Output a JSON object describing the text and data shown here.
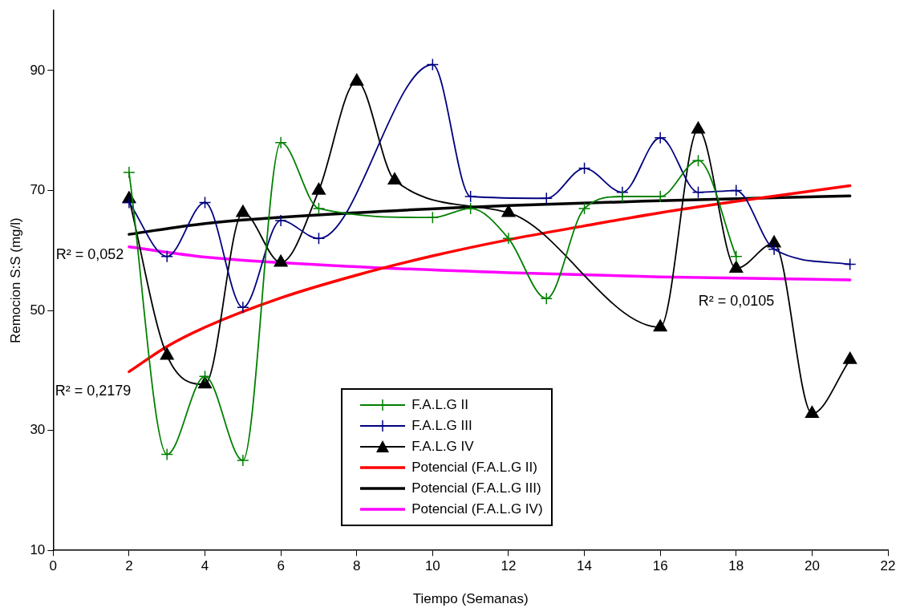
{
  "chart_data": {
    "type": "line",
    "xlabel": "Tiempo (Semanas)",
    "ylabel": "Remocion S:S (mg/l)",
    "xlim": [
      0,
      22
    ],
    "xticks": [
      0,
      2,
      4,
      6,
      8,
      10,
      12,
      14,
      16,
      18,
      20,
      22
    ],
    "ylim": [
      10,
      100
    ],
    "yticks": [
      10,
      30,
      50,
      70,
      90
    ],
    "grid": false,
    "legend": "bottom",
    "line_style": "solid",
    "series": [
      {
        "name": "F.A.L.G II",
        "color": "#008000",
        "marker": "cross",
        "x": [
          2,
          3,
          4,
          5,
          6,
          7,
          10,
          11,
          12,
          13,
          14,
          15,
          16,
          17,
          18
        ],
        "values": [
          73,
          26,
          39,
          25,
          78,
          67,
          65.5,
          67,
          62,
          52,
          67,
          69,
          69,
          75,
          59
        ]
      },
      {
        "name": "F.A.L.G III",
        "color": "#000080",
        "marker": "cross",
        "x": [
          2,
          3,
          4,
          5,
          6,
          7,
          10,
          11,
          13,
          14,
          15,
          16,
          17,
          18,
          19,
          21
        ],
        "values": [
          68,
          59,
          68,
          50.5,
          65,
          62,
          91,
          69,
          68.7,
          73.7,
          69.7,
          78.8,
          69.7,
          70,
          60.2,
          57.7
        ]
      },
      {
        "name": "F.A.L.G IV",
        "color": "#000000",
        "marker": "triangle",
        "x": [
          2,
          3,
          4,
          5,
          6,
          7,
          8,
          9,
          12,
          16,
          17,
          18,
          19,
          20,
          21
        ],
        "values": [
          68.6,
          42.5,
          37.7,
          66.3,
          58,
          70,
          88.2,
          71.7,
          66.3,
          47.2,
          80.2,
          57,
          61.2,
          32.8,
          41.8
        ]
      },
      {
        "name": "Potencial (F.A.L.G II)",
        "color": "#ff0000",
        "marker": "none",
        "x": [
          2,
          3,
          4,
          6,
          8,
          10,
          12,
          14,
          16,
          18,
          21
        ],
        "values": [
          39.8,
          44,
          47.2,
          52.1,
          55.9,
          59.1,
          61.8,
          64.1,
          66.3,
          68.2,
          70.8
        ]
      },
      {
        "name": "Potencial (F.A.L.G III)",
        "color": "#000000",
        "marker": "none",
        "x": [
          2,
          4,
          8,
          12,
          16,
          21
        ],
        "values": [
          62.7,
          64.5,
          66.3,
          67.5,
          68.3,
          69.1
        ]
      },
      {
        "name": "Potencial (F.A.L.G IV)",
        "color": "#ff00ff",
        "marker": "none",
        "x": [
          2,
          4,
          8,
          12,
          16,
          21
        ],
        "values": [
          60.6,
          58.9,
          57.3,
          56.3,
          55.6,
          55.1
        ]
      }
    ],
    "annotations": [
      "R² = 0,052",
      "R² = 0,2179",
      "R² = 0,0105"
    ]
  }
}
